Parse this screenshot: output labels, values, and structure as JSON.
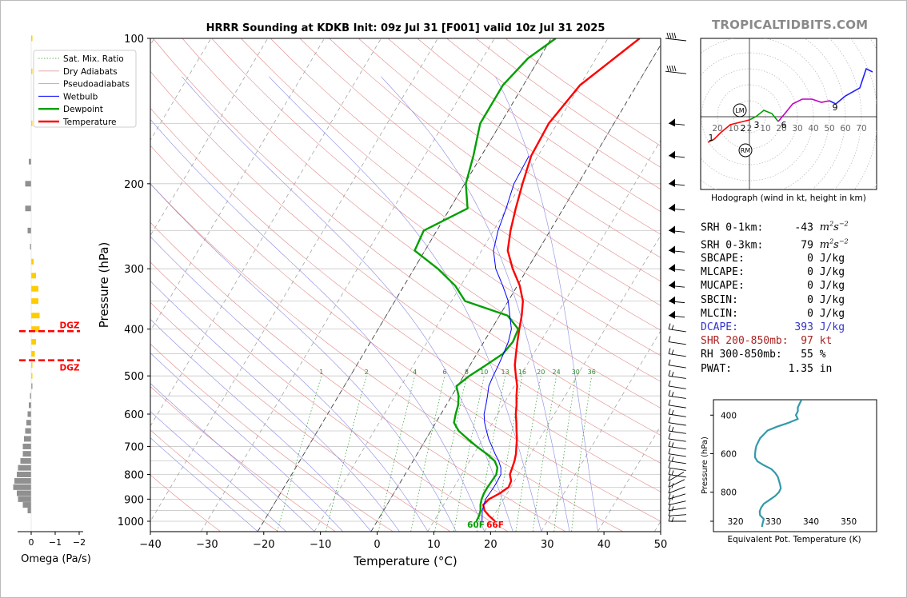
{
  "header": {
    "title": "HRRR Sounding at KDKB Init: 09z Jul 31 [F001] valid 10z Jul 31 2025",
    "brand": "TROPICALTIDBITS.COM"
  },
  "chart_data": [
    {
      "type": "line",
      "name": "skew-t",
      "xlabel": "Temperature (°C)",
      "ylabel": "Pressure (hPa)",
      "xlim": [
        -40,
        50
      ],
      "ylim": [
        1050,
        100
      ],
      "y_scale": "log",
      "x_ticks": [
        "−40",
        "−30",
        "−20",
        "−10",
        "0",
        "10",
        "20",
        "30",
        "40",
        "50"
      ],
      "y_ticks": [
        "100",
        "200",
        "300",
        "400",
        "500",
        "600",
        "700",
        "800",
        "900",
        "1000"
      ],
      "grid": true,
      "legend_position": "top-left",
      "legend": [
        "Sat. Mix. Ratio",
        "Dry Adiabats",
        "Pseudoadiabats",
        "Wetbulb",
        "Dewpoint",
        "Temperature"
      ],
      "mixing_ratio_labels": [
        "1",
        "2",
        "4",
        "6",
        "8",
        "10",
        "13",
        "16",
        "20",
        "24",
        "30",
        "36"
      ],
      "series": [
        {
          "name": "Temperature",
          "color": "#ff0000",
          "points": [
            [
              1000,
              20.8
            ],
            [
              975,
              19.2
            ],
            [
              950,
              17.8
            ],
            [
              925,
              17.0
            ],
            [
              900,
              17.4
            ],
            [
              875,
              18.7
            ],
            [
              850,
              19.6
            ],
            [
              825,
              19.4
            ],
            [
              800,
              18.5
            ],
            [
              775,
              18.2
            ],
            [
              750,
              17.9
            ],
            [
              725,
              17.4
            ],
            [
              700,
              16.7
            ],
            [
              675,
              16.0
            ],
            [
              650,
              15.1
            ],
            [
              625,
              14.2
            ],
            [
              600,
              13.2
            ],
            [
              575,
              12.4
            ],
            [
              550,
              11.4
            ],
            [
              525,
              10.5
            ],
            [
              500,
              9.2
            ],
            [
              475,
              7.9
            ],
            [
              450,
              6.9
            ],
            [
              425,
              5.9
            ],
            [
              400,
              4.9
            ],
            [
              375,
              3.9
            ],
            [
              350,
              2.6
            ],
            [
              325,
              0.4
            ],
            [
              300,
              -2.6
            ],
            [
              275,
              -5.4
            ],
            [
              250,
              -7.0
            ],
            [
              225,
              -8.4
            ],
            [
              200,
              -9.8
            ],
            [
              175,
              -11.2
            ],
            [
              150,
              -11.5
            ],
            [
              125,
              -10.0
            ],
            [
              110,
              -6.8
            ],
            [
              100,
              -4.4
            ]
          ]
        },
        {
          "name": "Dewpoint",
          "color": "#00a000",
          "points": [
            [
              1000,
              17.5
            ],
            [
              975,
              17.4
            ],
            [
              950,
              17.1
            ],
            [
              925,
              16.5
            ],
            [
              900,
              16.1
            ],
            [
              875,
              15.9
            ],
            [
              850,
              15.9
            ],
            [
              825,
              16.0
            ],
            [
              800,
              16.1
            ],
            [
              775,
              15.6
            ],
            [
              750,
              14.4
            ],
            [
              725,
              12.2
            ],
            [
              700,
              9.7
            ],
            [
              675,
              7.3
            ],
            [
              650,
              4.9
            ],
            [
              625,
              3.2
            ],
            [
              600,
              2.6
            ],
            [
              575,
              2.1
            ],
            [
              550,
              1.2
            ],
            [
              525,
              -0.2
            ],
            [
              500,
              1.0
            ],
            [
              475,
              2.8
            ],
            [
              450,
              4.6
            ],
            [
              425,
              5.1
            ],
            [
              400,
              4.7
            ],
            [
              375,
              1.4
            ],
            [
              350,
              -7.6
            ],
            [
              325,
              -11.0
            ],
            [
              300,
              -15.8
            ],
            [
              275,
              -21.8
            ],
            [
              250,
              -22.3
            ],
            [
              225,
              -16.9
            ],
            [
              200,
              -19.8
            ],
            [
              175,
              -21.4
            ],
            [
              150,
              -23.6
            ],
            [
              125,
              -23.6
            ],
            [
              110,
              -22.0
            ],
            [
              100,
              -19.2
            ]
          ]
        },
        {
          "name": "Wetbulb",
          "color": "#0000ff",
          "points": [
            [
              1000,
              18.5
            ],
            [
              950,
              17.4
            ],
            [
              900,
              16.8
            ],
            [
              850,
              17.0
            ],
            [
              825,
              17.0
            ],
            [
              800,
              16.9
            ],
            [
              775,
              16.2
            ],
            [
              750,
              15.1
            ],
            [
              725,
              13.7
            ],
            [
              700,
              12.4
            ],
            [
              675,
              11.0
            ],
            [
              650,
              9.8
            ],
            [
              625,
              8.6
            ],
            [
              600,
              7.6
            ],
            [
              575,
              7.0
            ],
            [
              550,
              6.3
            ],
            [
              525,
              5.5
            ],
            [
              500,
              5.2
            ],
            [
              475,
              5.0
            ],
            [
              450,
              4.7
            ],
            [
              425,
              4.3
            ],
            [
              400,
              3.5
            ],
            [
              375,
              1.8
            ],
            [
              350,
              0.0
            ],
            [
              325,
              -2.6
            ],
            [
              300,
              -5.6
            ],
            [
              275,
              -7.9
            ],
            [
              250,
              -9.2
            ],
            [
              225,
              -10.1
            ],
            [
              200,
              -11.3
            ],
            [
              175,
              -11.6
            ]
          ]
        }
      ],
      "surface_labels": {
        "dewpoint": "60F",
        "temperature": "66F"
      }
    },
    {
      "type": "bar",
      "name": "omega",
      "xlabel": "Omega (Pa/s)",
      "x_ticks": [
        "0",
        "−1",
        "−2"
      ],
      "xlim": [
        0.3,
        -2.0
      ],
      "dgz_label": "DGZ",
      "dgz_pressures": [
        404,
        464
      ],
      "bars": [
        [
          100,
          -0.05
        ],
        [
          117,
          -0.05
        ],
        [
          150,
          -0.05
        ],
        [
          180,
          0.1
        ],
        [
          200,
          0.25
        ],
        [
          225,
          0.25
        ],
        [
          250,
          0.15
        ],
        [
          270,
          0.05
        ],
        [
          290,
          -0.1
        ],
        [
          310,
          -0.2
        ],
        [
          330,
          -0.3
        ],
        [
          350,
          -0.3
        ],
        [
          375,
          -0.35
        ],
        [
          400,
          -0.35
        ],
        [
          425,
          -0.2
        ],
        [
          450,
          -0.15
        ],
        [
          475,
          -0.05
        ],
        [
          500,
          -0.02
        ],
        [
          525,
          0.0
        ],
        [
          550,
          0.05
        ],
        [
          575,
          0.1
        ],
        [
          600,
          0.15
        ],
        [
          625,
          0.2
        ],
        [
          650,
          0.25
        ],
        [
          675,
          0.3
        ],
        [
          700,
          0.35
        ],
        [
          725,
          0.35
        ],
        [
          750,
          0.45
        ],
        [
          775,
          0.55
        ],
        [
          800,
          0.6
        ],
        [
          825,
          0.7
        ],
        [
          850,
          0.75
        ],
        [
          875,
          0.6
        ],
        [
          900,
          0.55
        ],
        [
          925,
          0.35
        ],
        [
          950,
          0.15
        ]
      ]
    },
    {
      "type": "line",
      "name": "hodograph",
      "xlabel": "Hodograph (wind in kt, height in km)",
      "ring_labels": [
        "20",
        "10",
        "2",
        "10",
        "20",
        "30",
        "40",
        "50",
        "60",
        "70"
      ],
      "markers": [
        "LM",
        "RM"
      ],
      "height_labels": [
        "1",
        "2",
        "3",
        "6",
        "9"
      ],
      "segments": [
        {
          "color": "#ff0000",
          "points": [
            [
              -26,
              -16
            ],
            [
              -22,
              -14
            ],
            [
              -18,
              -10
            ],
            [
              -12,
              -5
            ],
            [
              -4,
              -3
            ],
            [
              0,
              -2
            ]
          ]
        },
        {
          "color": "#00a000",
          "points": [
            [
              0,
              -2
            ],
            [
              4,
              0
            ],
            [
              9,
              4
            ],
            [
              14,
              2
            ],
            [
              18,
              -3
            ]
          ]
        },
        {
          "color": "#c000c0",
          "points": [
            [
              18,
              -3
            ],
            [
              23,
              3
            ],
            [
              27,
              8
            ],
            [
              33,
              11
            ],
            [
              39,
              11
            ],
            [
              45,
              9
            ],
            [
              50,
              10
            ]
          ]
        },
        {
          "color": "#2020ff",
          "points": [
            [
              50,
              10
            ],
            [
              54,
              8
            ],
            [
              60,
              13
            ],
            [
              69,
              18
            ],
            [
              73,
              30
            ],
            [
              77,
              28
            ]
          ]
        }
      ]
    },
    {
      "type": "line",
      "name": "theta-e",
      "xlabel": "Equivalent Pot. Temperature (K)",
      "ylabel": "Pressure (hPa)",
      "x_ticks": [
        "320",
        "330",
        "340",
        "350"
      ],
      "y_ticks": [
        "400",
        "600",
        "800"
      ],
      "color": "#3399aa",
      "points": [
        [
          320,
          337.5
        ],
        [
          340,
          337
        ],
        [
          360,
          336.5
        ],
        [
          380,
          336.5
        ],
        [
          400,
          336
        ],
        [
          420,
          336.5
        ],
        [
          440,
          334
        ],
        [
          460,
          331
        ],
        [
          480,
          328.5
        ],
        [
          500,
          327.5
        ],
        [
          520,
          326.5
        ],
        [
          540,
          326
        ],
        [
          560,
          325.5
        ],
        [
          580,
          325.3
        ],
        [
          600,
          325.2
        ],
        [
          620,
          325.2
        ],
        [
          640,
          325.8
        ],
        [
          660,
          327.5
        ],
        [
          680,
          329.5
        ],
        [
          700,
          330.5
        ],
        [
          720,
          331.2
        ],
        [
          740,
          331.5
        ],
        [
          760,
          331.8
        ],
        [
          780,
          332
        ],
        [
          800,
          331.5
        ],
        [
          820,
          330.5
        ],
        [
          840,
          329
        ],
        [
          860,
          327.5
        ],
        [
          880,
          326.8
        ],
        [
          900,
          326.4
        ],
        [
          920,
          326.5
        ],
        [
          940,
          327.5
        ],
        [
          960,
          327.2
        ],
        [
          980,
          327
        ]
      ]
    }
  ],
  "indices": [
    {
      "label": "SRH 0-1km:",
      "value": "-43",
      "unit": "m2s-2",
      "color": "#000000"
    },
    {
      "label": "SRH 0-3km:",
      "value": "79",
      "unit": "m2s-2",
      "color": "#000000"
    },
    {
      "label": "SBCAPE:",
      "value": "0",
      "unit": "J/kg",
      "color": "#000000"
    },
    {
      "label": "MLCAPE:",
      "value": "0",
      "unit": "J/kg",
      "color": "#000000"
    },
    {
      "label": "MUCAPE:",
      "value": "0",
      "unit": "J/kg",
      "color": "#000000"
    },
    {
      "label": "SBCIN:",
      "value": "0",
      "unit": "J/kg",
      "color": "#000000"
    },
    {
      "label": "MLCIN:",
      "value": "0",
      "unit": "J/kg",
      "color": "#000000"
    },
    {
      "label": "DCAPE:",
      "value": "393",
      "unit": "J/kg",
      "color": "#3333cc"
    },
    {
      "label": "SHR 200-850mb:",
      "value": "97",
      "unit": "kt",
      "color": "#aa2222"
    },
    {
      "label": "RH 300-850mb:",
      "value": "55",
      "unit": "%",
      "color": "#000000"
    },
    {
      "label": "PWAT:",
      "value": "1.35",
      "unit": "in",
      "color": "#000000"
    }
  ]
}
